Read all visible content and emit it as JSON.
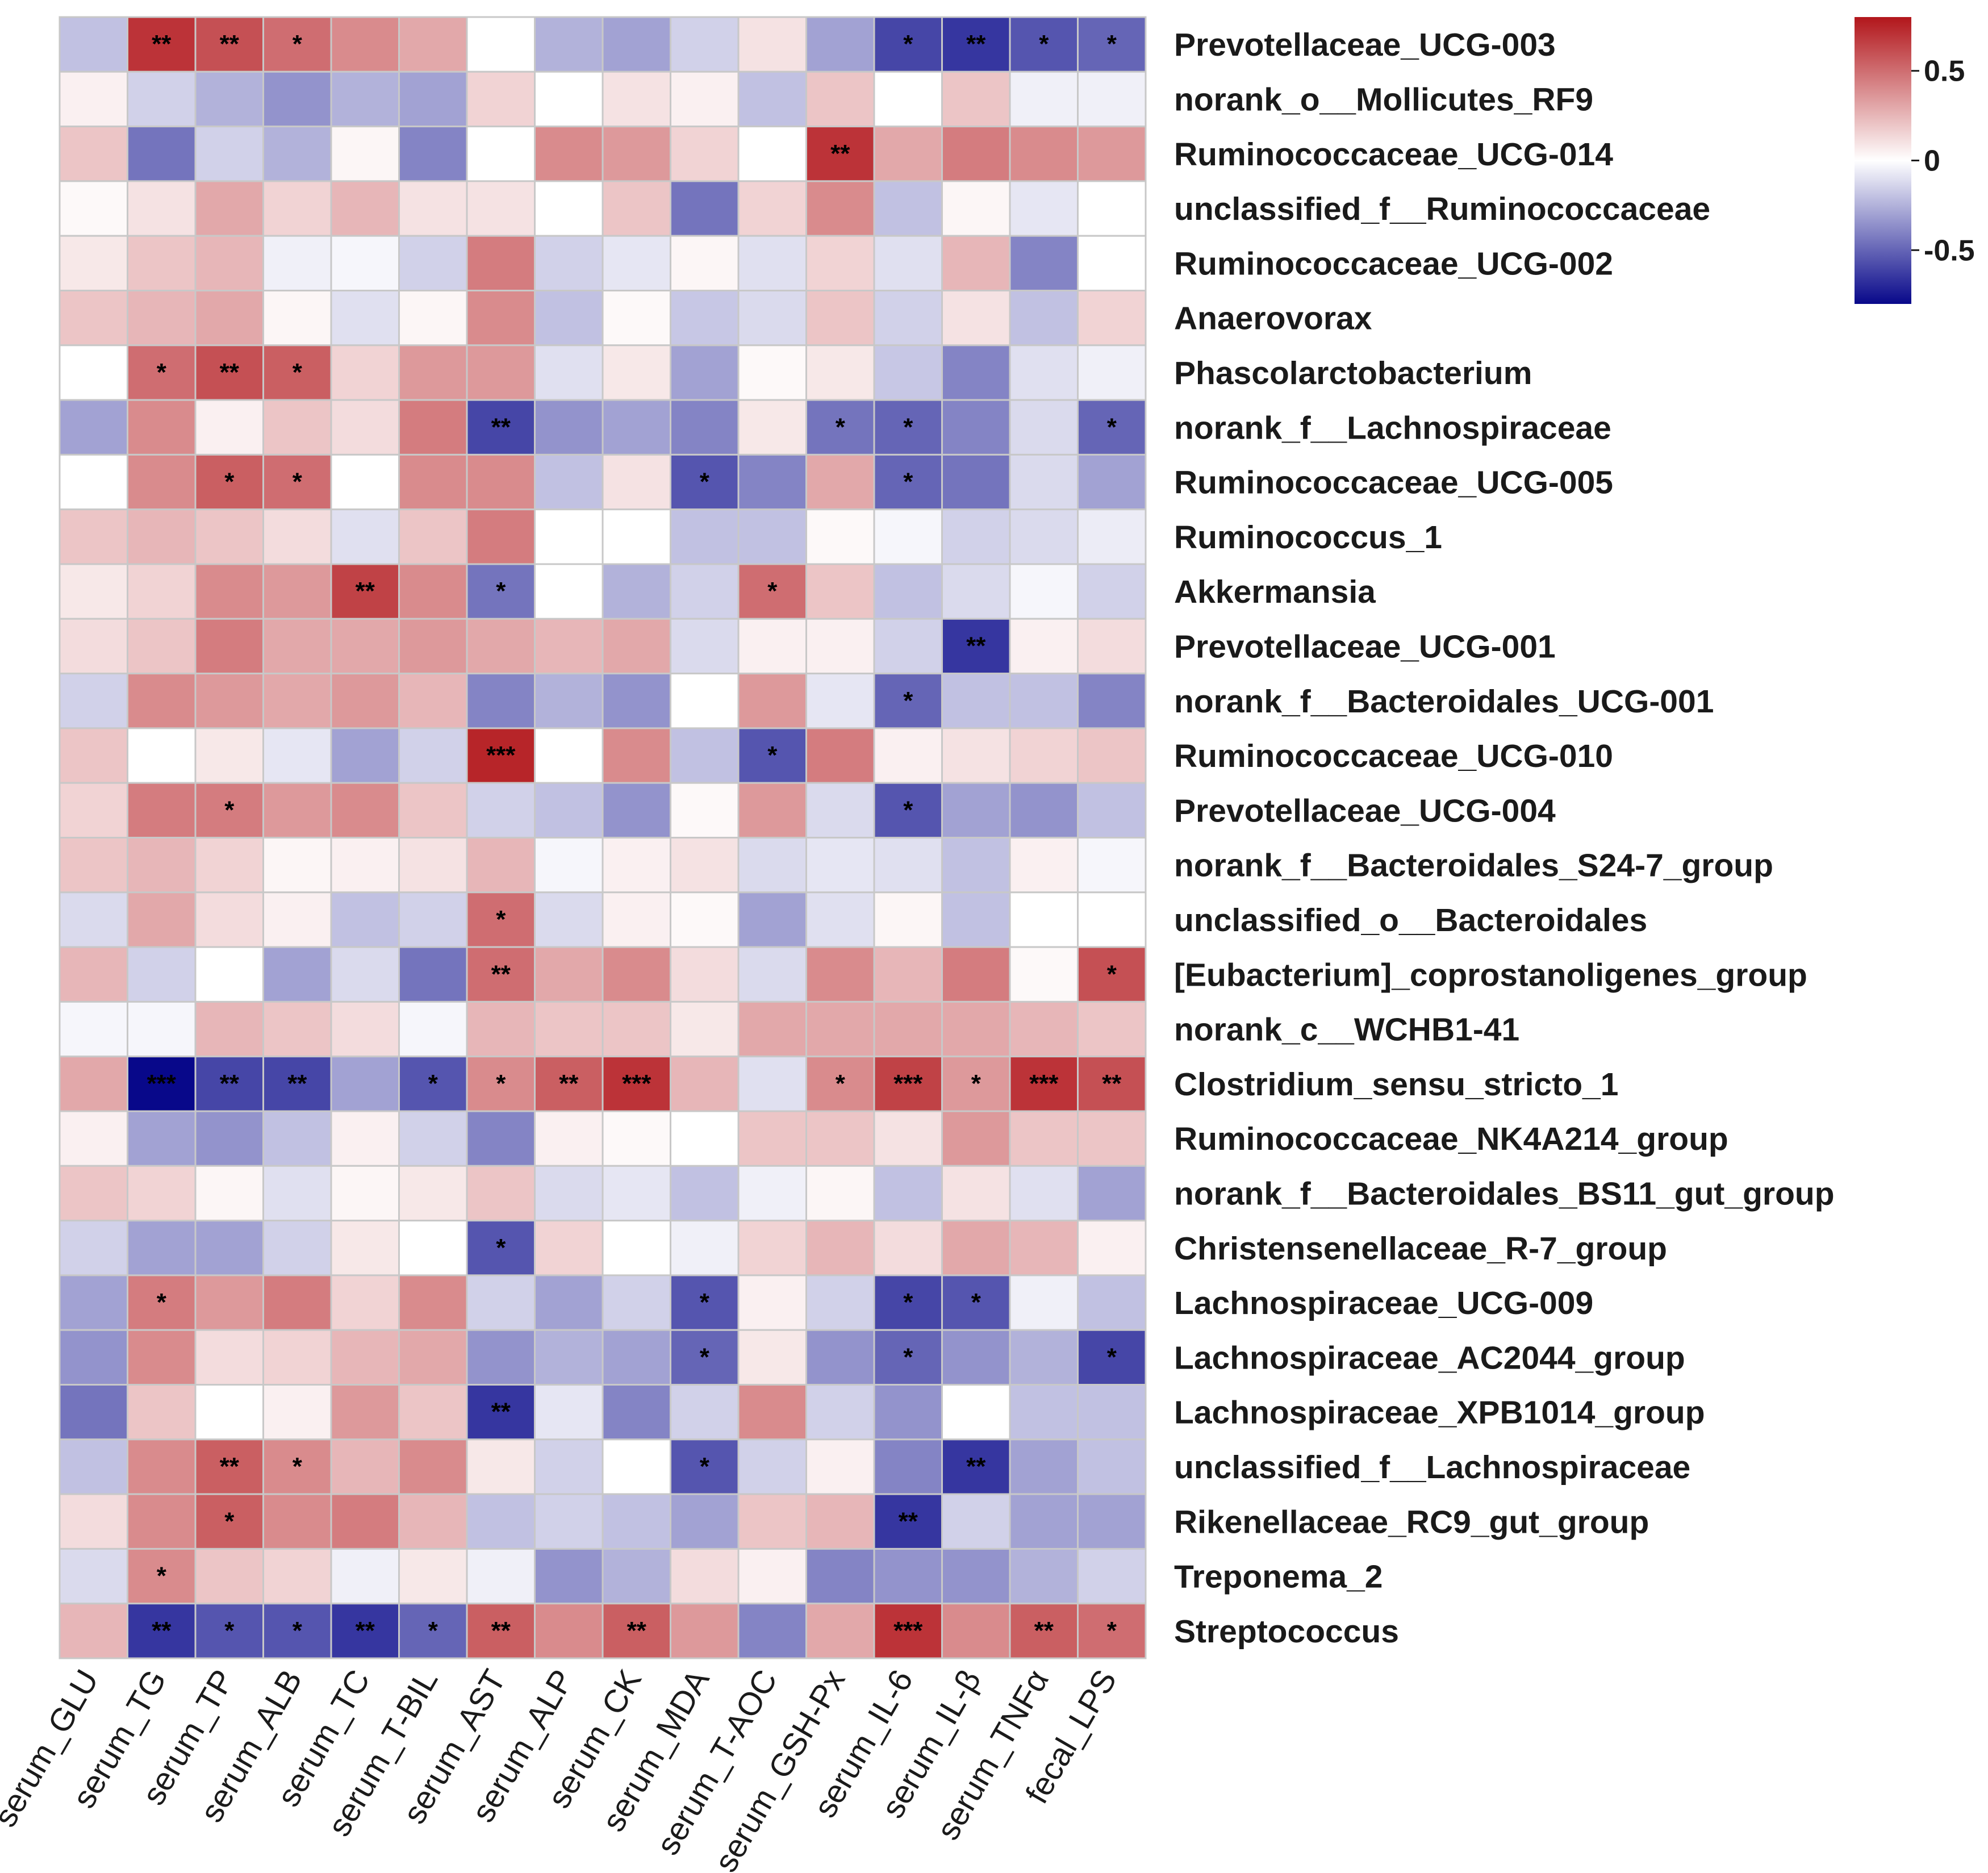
{
  "chart_data": {
    "type": "heatmap",
    "title": "",
    "color_scale": {
      "low": "#08088a",
      "mid": "#ffffff",
      "high": "#b2161b",
      "range": [
        -0.8,
        0.8
      ],
      "ticks": [
        {
          "value": 0.5,
          "label": "0.5"
        },
        {
          "value": 0,
          "label": "0"
        },
        {
          "value": -0.5,
          "label": "-0.5"
        }
      ]
    },
    "columns": [
      "serum_GLU",
      "serum_TG",
      "serum_TP",
      "serum_ALB",
      "serum_TC",
      "serum_T-BIL",
      "serum_AST",
      "serum_ALP",
      "serum_CK",
      "serum_MDA",
      "serum_T-AOC",
      "serum_GSH-Px",
      "serum_IL-6",
      "serum_IL-β",
      "serum_TNFα",
      "fecal_LPS"
    ],
    "rows": [
      "Prevotellaceae_UCG-003",
      "norank_o__Mollicutes_RF9",
      "Ruminococcaceae_UCG-014",
      "unclassified_f__Ruminococcaceae",
      "Ruminococcaceae_UCG-002",
      "Anaerovorax",
      "Phascolarctobacterium",
      "norank_f__Lachnospiraceae",
      "Ruminococcaceae_UCG-005",
      "Ruminococcus_1",
      "Akkermansia",
      "Prevotellaceae_UCG-001",
      "norank_f__Bacteroidales_UCG-001",
      "Ruminococcaceae_UCG-010",
      "Prevotellaceae_UCG-004",
      "norank_f__Bacteroidales_S24-7_group",
      "unclassified_o__Bacteroidales",
      "[Eubacterium]_coprostanoligenes_group",
      "norank_c__WCHB1-41",
      "Clostridium_sensu_stricto_1",
      "Ruminococcaceae_NK4A214_group",
      "norank_f__Bacteroidales_BS11_gut_group",
      "Christensenellaceae_R-7_group",
      "Lachnospiraceae_UCG-009",
      "Lachnospiraceae_AC2044_group",
      "Lachnospiraceae_XPB1014_group",
      "unclassified_f__Lachnospiraceae",
      "Rikenellaceae_RC9_gut_group",
      "Treponema_2",
      "Streptococcus"
    ],
    "values": [
      [
        -0.2,
        0.7,
        0.6,
        0.5,
        0.4,
        0.3,
        0,
        -0.25,
        -0.3,
        -0.15,
        0.1,
        -0.3,
        -0.6,
        -0.65,
        -0.55,
        -0.5
      ],
      [
        0.05,
        -0.15,
        -0.25,
        -0.35,
        -0.25,
        -0.3,
        0.15,
        0,
        0.1,
        0.05,
        -0.2,
        0.2,
        0,
        0.2,
        -0.05,
        -0.05
      ],
      [
        0.2,
        -0.45,
        -0.15,
        -0.25,
        0.03,
        -0.4,
        0,
        0.4,
        0.35,
        0.15,
        0,
        0.7,
        0.3,
        0.45,
        0.4,
        0.35
      ],
      [
        0.02,
        0.1,
        0.3,
        0.15,
        0.25,
        0.1,
        0.1,
        0,
        0.2,
        -0.45,
        0.15,
        0.4,
        -0.2,
        0.03,
        -0.08,
        0
      ],
      [
        0.08,
        0.2,
        0.25,
        -0.05,
        -0.03,
        -0.15,
        0.45,
        -0.15,
        -0.08,
        0.03,
        -0.1,
        0.15,
        -0.1,
        0.25,
        -0.4,
        0
      ],
      [
        0.2,
        0.25,
        0.3,
        0.03,
        -0.1,
        0.03,
        0.4,
        -0.2,
        0.02,
        -0.18,
        -0.12,
        0.2,
        -0.15,
        0.1,
        -0.2,
        0.15
      ],
      [
        0,
        0.5,
        0.6,
        0.55,
        0.15,
        0.35,
        0.35,
        -0.1,
        0.08,
        -0.3,
        0.02,
        0.08,
        -0.18,
        -0.4,
        -0.1,
        -0.05
      ],
      [
        -0.3,
        0.4,
        0.05,
        0.2,
        0.12,
        0.45,
        -0.6,
        -0.35,
        -0.3,
        -0.4,
        0.08,
        -0.45,
        -0.5,
        -0.4,
        -0.12,
        -0.5
      ],
      [
        0,
        0.4,
        0.55,
        0.5,
        0,
        0.4,
        0.4,
        -0.2,
        0.1,
        -0.55,
        -0.4,
        0.3,
        -0.5,
        -0.45,
        -0.12,
        -0.3
      ],
      [
        0.2,
        0.25,
        0.2,
        0.12,
        -0.1,
        0.2,
        0.45,
        0,
        0,
        -0.2,
        -0.2,
        0.02,
        -0.03,
        -0.15,
        -0.12,
        -0.06
      ],
      [
        0.08,
        0.15,
        0.4,
        0.35,
        0.65,
        0.4,
        -0.45,
        0,
        -0.25,
        -0.15,
        0.5,
        0.2,
        -0.2,
        -0.12,
        -0.03,
        -0.15
      ],
      [
        0.12,
        0.2,
        0.45,
        0.3,
        0.3,
        0.35,
        0.3,
        0.25,
        0.3,
        -0.12,
        0.05,
        0.05,
        -0.15,
        -0.65,
        0.05,
        0.12
      ],
      [
        -0.15,
        0.4,
        0.35,
        0.3,
        0.35,
        0.25,
        -0.4,
        -0.25,
        -0.35,
        0,
        0.35,
        -0.08,
        -0.5,
        -0.2,
        -0.2,
        -0.4
      ],
      [
        0.2,
        0,
        0.08,
        -0.08,
        -0.3,
        -0.15,
        0.75,
        0,
        0.4,
        -0.2,
        -0.55,
        0.45,
        0.05,
        0.1,
        0.15,
        0.2
      ],
      [
        0.15,
        0.45,
        0.45,
        0.35,
        0.4,
        0.2,
        -0.15,
        -0.2,
        -0.35,
        0.02,
        0.35,
        -0.12,
        -0.55,
        -0.3,
        -0.35,
        -0.2
      ],
      [
        0.2,
        0.25,
        0.15,
        0.03,
        0.05,
        0.1,
        0.25,
        -0.03,
        0.05,
        0.1,
        -0.12,
        -0.08,
        -0.1,
        -0.2,
        0.05,
        -0.03
      ],
      [
        -0.12,
        0.3,
        0.12,
        0.05,
        -0.2,
        -0.15,
        0.5,
        -0.12,
        0.05,
        0.02,
        -0.3,
        -0.1,
        0.03,
        -0.2,
        0,
        0
      ],
      [
        0.25,
        -0.15,
        0,
        -0.3,
        -0.12,
        -0.45,
        0.5,
        0.3,
        0.4,
        0.12,
        -0.12,
        0.4,
        0.25,
        0.45,
        0.02,
        0.6
      ],
      [
        -0.03,
        -0.03,
        0.25,
        0.2,
        0.12,
        -0.03,
        0.25,
        0.2,
        0.2,
        0.08,
        0.3,
        0.3,
        0.3,
        0.3,
        0.25,
        0.2
      ],
      [
        0.3,
        -0.8,
        -0.6,
        -0.6,
        -0.3,
        -0.55,
        0.4,
        0.55,
        0.7,
        0.25,
        -0.1,
        0.4,
        0.65,
        0.35,
        0.7,
        0.6
      ],
      [
        0.05,
        -0.3,
        -0.35,
        -0.2,
        0.05,
        -0.15,
        -0.4,
        0.05,
        0.02,
        0,
        0.2,
        0.2,
        0.1,
        0.35,
        0.2,
        0.2
      ],
      [
        0.2,
        0.15,
        0.03,
        -0.1,
        0.03,
        0.08,
        0.2,
        -0.12,
        -0.08,
        -0.2,
        -0.05,
        0.03,
        -0.2,
        0.1,
        -0.1,
        -0.3
      ],
      [
        -0.15,
        -0.3,
        -0.3,
        -0.15,
        0.08,
        0,
        -0.55,
        0.15,
        0,
        -0.05,
        0.15,
        0.25,
        0.12,
        0.3,
        0.25,
        0.05
      ],
      [
        -0.3,
        0.45,
        0.35,
        0.45,
        0.15,
        0.4,
        -0.15,
        -0.3,
        -0.15,
        -0.55,
        0.05,
        -0.15,
        -0.6,
        -0.55,
        -0.05,
        -0.2
      ],
      [
        -0.35,
        0.4,
        0.12,
        0.15,
        0.25,
        0.3,
        -0.35,
        -0.25,
        -0.3,
        -0.5,
        0.08,
        -0.35,
        -0.5,
        -0.35,
        -0.25,
        -0.6
      ],
      [
        -0.45,
        0.2,
        0,
        0.05,
        0.35,
        0.2,
        -0.65,
        -0.08,
        -0.4,
        -0.15,
        0.4,
        -0.15,
        -0.35,
        0,
        -0.2,
        -0.2
      ],
      [
        -0.2,
        0.4,
        0.55,
        0.4,
        0.25,
        0.4,
        0.08,
        -0.15,
        0,
        -0.55,
        -0.15,
        0.05,
        -0.4,
        -0.65,
        -0.3,
        -0.2
      ],
      [
        0.12,
        0.4,
        0.55,
        0.4,
        0.45,
        0.25,
        -0.2,
        -0.15,
        -0.2,
        -0.3,
        0.2,
        0.25,
        -0.65,
        -0.15,
        -0.3,
        -0.3
      ],
      [
        -0.12,
        0.4,
        0.2,
        0.15,
        -0.05,
        0.08,
        -0.05,
        -0.35,
        -0.25,
        0.12,
        0.05,
        -0.4,
        -0.35,
        -0.35,
        -0.25,
        -0.15
      ],
      [
        0.25,
        -0.65,
        -0.55,
        -0.55,
        -0.65,
        -0.5,
        0.55,
        0.4,
        0.55,
        0.35,
        -0.4,
        0.3,
        0.7,
        0.4,
        0.55,
        0.5
      ]
    ],
    "significance": [
      [
        "",
        "**",
        "**",
        "*",
        "",
        "",
        "",
        "",
        "",
        "",
        "",
        "",
        "*",
        "**",
        "*",
        "*"
      ],
      [
        "",
        "",
        "",
        "",
        "",
        "",
        "",
        "",
        "",
        "",
        "",
        "",
        "",
        "",
        "",
        ""
      ],
      [
        "",
        "",
        "",
        "",
        "",
        "",
        "",
        "",
        "",
        "",
        "",
        "**",
        "",
        "",
        "",
        ""
      ],
      [
        "",
        "",
        "",
        "",
        "",
        "",
        "",
        "",
        "",
        "",
        "",
        "",
        "",
        "",
        "",
        ""
      ],
      [
        "",
        "",
        "",
        "",
        "",
        "",
        "",
        "",
        "",
        "",
        "",
        "",
        "",
        "",
        "",
        ""
      ],
      [
        "",
        "",
        "",
        "",
        "",
        "",
        "",
        "",
        "",
        "",
        "",
        "",
        "",
        "",
        "",
        ""
      ],
      [
        "",
        "*",
        "**",
        "*",
        "",
        "",
        "",
        "",
        "",
        "",
        "",
        "",
        "",
        "",
        "",
        ""
      ],
      [
        "",
        "",
        "",
        "",
        "",
        "",
        "**",
        "",
        "",
        "",
        "",
        "*",
        "*",
        "",
        "",
        "*"
      ],
      [
        "",
        "",
        "*",
        "*",
        "",
        "",
        "",
        "",
        "",
        "*",
        "",
        "",
        "*",
        "",
        "",
        ""
      ],
      [
        "",
        "",
        "",
        "",
        "",
        "",
        "",
        "",
        "",
        "",
        "",
        "",
        "",
        "",
        "",
        ""
      ],
      [
        "",
        "",
        "",
        "",
        "**",
        "",
        "*",
        "",
        "",
        "",
        "*",
        "",
        "",
        "",
        "",
        ""
      ],
      [
        "",
        "",
        "",
        "",
        "",
        "",
        "",
        "",
        "",
        "",
        "",
        "",
        "",
        "**",
        "",
        ""
      ],
      [
        "",
        "",
        "",
        "",
        "",
        "",
        "",
        "",
        "",
        "",
        "",
        "",
        "*",
        "",
        "",
        ""
      ],
      [
        "",
        "",
        "",
        "",
        "",
        "",
        "***",
        "",
        "",
        "",
        "*",
        "",
        "",
        "",
        "",
        ""
      ],
      [
        "",
        "",
        "*",
        "",
        "",
        "",
        "",
        "",
        "",
        "",
        "",
        "",
        "*",
        "",
        "",
        ""
      ],
      [
        "",
        "",
        "",
        "",
        "",
        "",
        "",
        "",
        "",
        "",
        "",
        "",
        "",
        "",
        "",
        ""
      ],
      [
        "",
        "",
        "",
        "",
        "",
        "",
        "*",
        "",
        "",
        "",
        "",
        "",
        "",
        "",
        "",
        ""
      ],
      [
        "",
        "",
        "",
        "",
        "",
        "",
        "**",
        "",
        "",
        "",
        "",
        "",
        "",
        "",
        "",
        "*"
      ],
      [
        "",
        "",
        "",
        "",
        "",
        "",
        "",
        "",
        "",
        "",
        "",
        "",
        "",
        "",
        "",
        ""
      ],
      [
        "",
        "***",
        "**",
        "**",
        "",
        "*",
        "*",
        "**",
        "***",
        "",
        "",
        "*",
        "***",
        "*",
        "***",
        "**"
      ],
      [
        "",
        "",
        "",
        "",
        "",
        "",
        "",
        "",
        "",
        "",
        "",
        "",
        "",
        "",
        "",
        ""
      ],
      [
        "",
        "",
        "",
        "",
        "",
        "",
        "",
        "",
        "",
        "",
        "",
        "",
        "",
        "",
        "",
        ""
      ],
      [
        "",
        "",
        "",
        "",
        "",
        "",
        "*",
        "",
        "",
        "",
        "",
        "",
        "",
        "",
        "",
        ""
      ],
      [
        "",
        "*",
        "",
        "",
        "",
        "",
        "",
        "",
        "",
        "*",
        "",
        "",
        "*",
        "*",
        "",
        ""
      ],
      [
        "",
        "",
        "",
        "",
        "",
        "",
        "",
        "",
        "",
        "*",
        "",
        "",
        "*",
        "",
        "",
        "*"
      ],
      [
        "",
        "",
        "",
        "",
        "",
        "",
        "**",
        "",
        "",
        "",
        "",
        "",
        "",
        "",
        "",
        ""
      ],
      [
        "",
        "",
        "**",
        "*",
        "",
        "",
        "",
        "",
        "",
        "*",
        "",
        "",
        "",
        "**",
        "",
        ""
      ],
      [
        "",
        "",
        "*",
        "",
        "",
        "",
        "",
        "",
        "",
        "",
        "",
        "",
        "**",
        "",
        "",
        ""
      ],
      [
        "",
        "*",
        "",
        "",
        "",
        "",
        "",
        "",
        "",
        "",
        "",
        "",
        "",
        "",
        "",
        ""
      ],
      [
        "",
        "**",
        "*",
        "*",
        "**",
        "*",
        "**",
        "",
        "**",
        "",
        "",
        "",
        "***",
        "",
        "**",
        "*"
      ]
    ]
  }
}
